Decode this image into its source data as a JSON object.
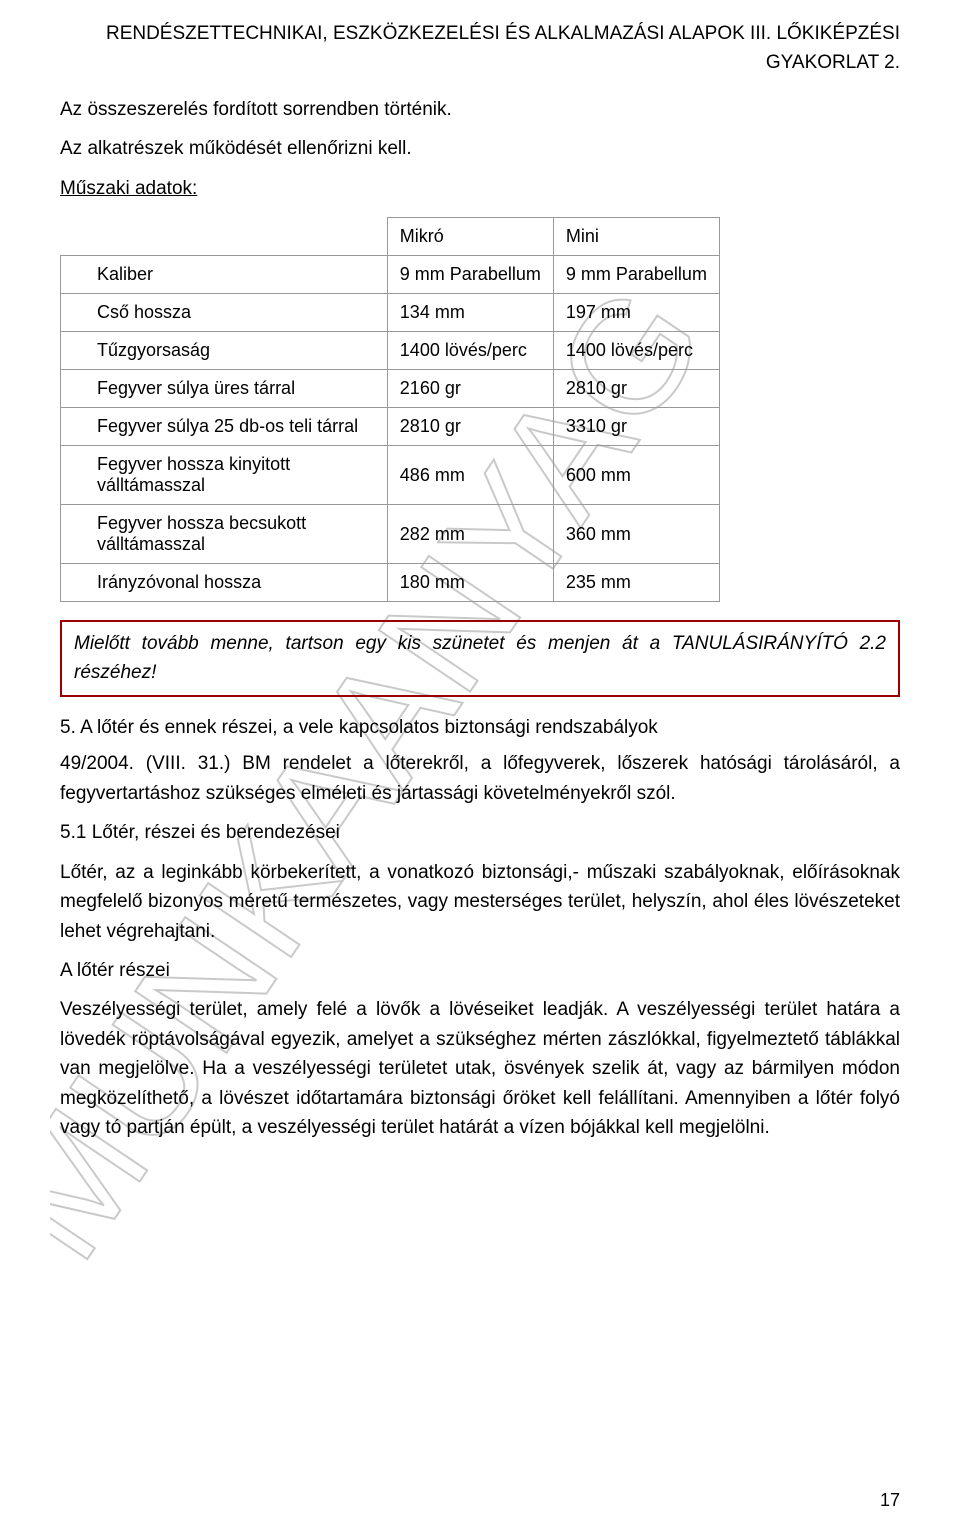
{
  "header": {
    "line1": "RENDÉSZETTECHNIKAI, ESZKÖZKEZELÉSI ÉS ALKALMAZÁSI ALAPOK III. LŐKIKÉPZÉSI",
    "line2": "GYAKORLAT 2."
  },
  "intro": {
    "p1": "Az összeszerelés fordított sorrendben történik.",
    "p2": "Az alkatrészek működését ellenőrizni kell.",
    "p3": "Műszaki adatok:"
  },
  "table": {
    "col_headers": {
      "c2": "Mikró",
      "c3": "Mini"
    },
    "rows": [
      {
        "label": "Kaliber",
        "c2": "9 mm Parabellum",
        "c3": "9 mm Parabellum"
      },
      {
        "label": "Cső hossza",
        "c2": "134 mm",
        "c3": "197 mm"
      },
      {
        "label": "Tűzgyorsaság",
        "c2": "1400 lövés/perc",
        "c3": "1400 lövés/perc"
      },
      {
        "label": "Fegyver súlya üres tárral",
        "c2": "2160 gr",
        "c3": "2810 gr"
      },
      {
        "label": "Fegyver súlya 25 db-os teli tárral",
        "c2": "2810 gr",
        "c3": "3310 gr"
      },
      {
        "label": "Fegyver hossza kinyitott válltámasszal",
        "c2": "486 mm",
        "c3": "600 mm"
      },
      {
        "label": "Fegyver hossza becsukott válltámasszal",
        "c2": "282 mm",
        "c3": "360 mm"
      },
      {
        "label": "Irányzóvonal hossza",
        "c2": "180 mm",
        "c3": "235 mm"
      }
    ]
  },
  "callout": {
    "text": "Mielőtt tovább menne, tartson egy kis szünetet és menjen át a TANULÁSIRÁNYÍTÓ 2.2 részéhez!"
  },
  "section5": {
    "title": "5. A lőtér és ennek részei, a vele kapcsolatos biztonsági rendszabályok",
    "p1": "49/2004. (VIII. 31.) BM rendelet a lőterekről, a lőfegyverek, lőszerek hatósági tárolásáról, a fegyvertartáshoz szükséges elméleti és jártassági követelményekről szól.",
    "sub1": "5.1 Lőtér, részei és berendezései",
    "p2": "Lőtér, az a leginkább körbekerített, a vonatkozó biztonsági,- műszaki szabályoknak, előírásoknak megfelelő bizonyos méretű természetes, vagy mesterséges terület, helyszín, ahol éles lövészeteket lehet végrehajtani.",
    "p3": "A lőtér részei",
    "p4": "Veszélyességi terület, amely felé a lövők a lövéseiket leadják. A veszélyességi terület határa a lövedék röptávolságával egyezik, amelyet a szükséghez mérten zászlókkal, figyelmeztető táblákkal van megjelölve. Ha a veszélyességi területet utak, ösvények szelik át, vagy az bármilyen módon megközelíthető, a lövészet időtartamára biztonsági őröket kell felállítani. Amennyiben a lőtér folyó vagy tó partján épült, a veszélyességi terület határát a vízen bójákkal kell megjelölni."
  },
  "page_number": "17",
  "watermark_text": "MUNKAANYAG",
  "colors": {
    "text": "#000000",
    "table_border": "#999999",
    "callout_border": "#990000",
    "watermark": "#c9c9c9",
    "background": "#ffffff"
  }
}
